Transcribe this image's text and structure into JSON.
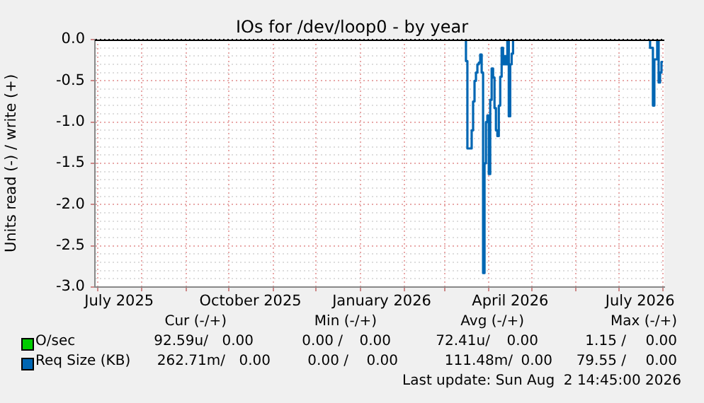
{
  "chart_data": {
    "type": "step",
    "title": "IOs for /dev/loop0 - by year",
    "ylabel": "Units read (-) / write (+)",
    "x": [
      "2026-03-14",
      "2026-03-15",
      "2026-03-16",
      "2026-03-17",
      "2026-03-18",
      "2026-03-19",
      "2026-03-20",
      "2026-03-21",
      "2026-03-22",
      "2026-03-23",
      "2026-03-24",
      "2026-03-25",
      "2026-03-26",
      "2026-03-27",
      "2026-03-28",
      "2026-03-29",
      "2026-03-30",
      "2026-03-31",
      "2026-04-01",
      "2026-04-02",
      "2026-04-03",
      "2026-04-04",
      "2026-04-05",
      "2026-04-06",
      "2026-04-07",
      "2026-04-08",
      "2026-04-09",
      "2026-04-10",
      "2026-04-11",
      "2026-04-12",
      "2026-04-13",
      "2026-04-14",
      "2026-04-15",
      "2026-04-16",
      "2026-04-17",
      "2026-04-18",
      "2026-07-22",
      "2026-07-23",
      "2026-07-24",
      "2026-07-25",
      "2026-07-26",
      "2026-07-27",
      "2026-07-28",
      "2026-07-29",
      "2026-07-30",
      "2026-07-31",
      "2026-08-01"
    ],
    "series": [
      {
        "name": "O/sec",
        "color": "#00cc00",
        "values": [
          null,
          null,
          null,
          null,
          null,
          null,
          null,
          null,
          null,
          null,
          null,
          null,
          null,
          null,
          null,
          null,
          null,
          null,
          null,
          null,
          null,
          null,
          null,
          null,
          null,
          null,
          null,
          null,
          null,
          null,
          null,
          null,
          null,
          null,
          null,
          null,
          null,
          null,
          null,
          null,
          null,
          null,
          null,
          null,
          null,
          null,
          null
        ]
      },
      {
        "name": "Req Size (KB)",
        "color": "#0066b3",
        "values": [
          0,
          0,
          -0.26,
          -1.32,
          -1.32,
          -1.32,
          -1.1,
          -0.75,
          -0.5,
          -0.4,
          -0.3,
          -0.28,
          -0.18,
          -0.4,
          -2.83,
          -1.5,
          -1.0,
          -0.92,
          -1.63,
          -0.73,
          -0.35,
          -0.46,
          -0.83,
          -1.1,
          -1.17,
          -0.8,
          -0.45,
          -0.1,
          -0.3,
          -0.2,
          -0.3,
          0,
          -0.93,
          -0.3,
          -0.17,
          0,
          0,
          -0.1,
          -0.1,
          -0.8,
          -0.24,
          -0.24,
          0,
          -0.52,
          -0.4,
          -0.27,
          -0.27
        ]
      }
    ],
    "xlim": [
      "2025-06-29",
      "2026-08-02"
    ],
    "xticks": [
      {
        "value": "2025-07-01",
        "label": null
      },
      {
        "value": "2025-07-16",
        "label": "July 2025"
      },
      {
        "value": "2025-08-01",
        "label": null
      },
      {
        "value": "2025-09-01",
        "label": null
      },
      {
        "value": "2025-10-01",
        "label": null
      },
      {
        "value": "2025-10-16",
        "label": "October 2025"
      },
      {
        "value": "2025-11-01",
        "label": null
      },
      {
        "value": "2025-12-01",
        "label": null
      },
      {
        "value": "2026-01-01",
        "label": null
      },
      {
        "value": "2026-01-16",
        "label": "January 2026"
      },
      {
        "value": "2026-02-01",
        "label": null
      },
      {
        "value": "2026-03-01",
        "label": null
      },
      {
        "value": "2026-04-01",
        "label": null
      },
      {
        "value": "2026-04-16",
        "label": "April 2026"
      },
      {
        "value": "2026-05-01",
        "label": null
      },
      {
        "value": "2026-06-01",
        "label": null
      },
      {
        "value": "2026-07-01",
        "label": null
      },
      {
        "value": "2026-07-16",
        "label": "July 2026"
      },
      {
        "value": "2026-08-01",
        "label": null
      }
    ],
    "ylim": [
      -3,
      0
    ],
    "yticks": [
      {
        "value": -3,
        "label": "-3.0"
      },
      {
        "value": -2.9,
        "label": null
      },
      {
        "value": -2.8,
        "label": null
      },
      {
        "value": -2.7,
        "label": null
      },
      {
        "value": -2.6,
        "label": null
      },
      {
        "value": -2.5,
        "label": "-2.5"
      },
      {
        "value": -2.4,
        "label": null
      },
      {
        "value": -2.3,
        "label": null
      },
      {
        "value": -2.2,
        "label": null
      },
      {
        "value": -2.1,
        "label": null
      },
      {
        "value": -2,
        "label": "-2.0"
      },
      {
        "value": -1.9,
        "label": null
      },
      {
        "value": -1.8,
        "label": null
      },
      {
        "value": -1.7,
        "label": null
      },
      {
        "value": -1.6,
        "label": null
      },
      {
        "value": -1.5,
        "label": "-1.5"
      },
      {
        "value": -1.4,
        "label": null
      },
      {
        "value": -1.3,
        "label": null
      },
      {
        "value": -1.2,
        "label": null
      },
      {
        "value": -1.1,
        "label": null
      },
      {
        "value": -1,
        "label": "-1.0"
      },
      {
        "value": -0.9,
        "label": null
      },
      {
        "value": -0.8,
        "label": null
      },
      {
        "value": -0.7,
        "label": null
      },
      {
        "value": -0.6,
        "label": null
      },
      {
        "value": -0.5,
        "label": "-0.5"
      },
      {
        "value": -0.4,
        "label": null
      },
      {
        "value": -0.3,
        "label": null
      },
      {
        "value": -0.2,
        "label": null
      },
      {
        "value": -0.1,
        "label": null
      },
      {
        "value": 0,
        "label": "0.0"
      }
    ],
    "grid": true,
    "legend": "bottom left",
    "marker": "none",
    "annotations": [
      "Cur (-/+)",
      "Min (-/+)",
      "Avg (-/+)",
      "Max (-/+)",
      "92.59u/",
      "0.00",
      "0.00 /",
      "0.00",
      "72.41u/",
      "0.00",
      "1.15 /",
      "0.00",
      "262.71m/",
      "0.00",
      "0.00 /",
      "0.00",
      "111.48m/",
      "0.00",
      "79.55 /",
      "0.00",
      "Last update: Sun Aug  2 14:45:00 2026"
    ]
  }
}
